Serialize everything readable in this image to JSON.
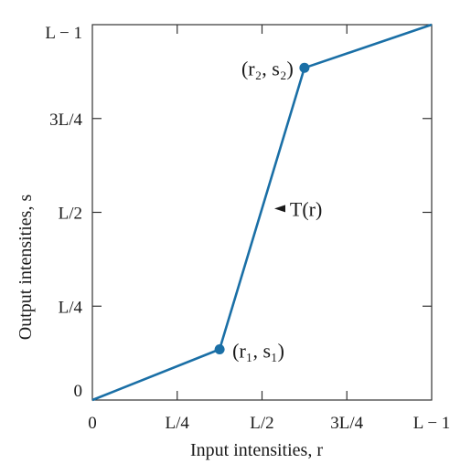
{
  "chart_data": {
    "type": "line",
    "xlabel": "Input intensities, r",
    "ylabel": "Output intensities, s",
    "xlim": [
      0,
      1
    ],
    "ylim": [
      0,
      1
    ],
    "grid": false,
    "x_ticks": [
      {
        "value": 0,
        "label": "0"
      },
      {
        "value": 0.25,
        "label": "L/4"
      },
      {
        "value": 0.5,
        "label": "L/2"
      },
      {
        "value": 0.75,
        "label": "3L/4"
      },
      {
        "value": 1,
        "label": "L − 1"
      }
    ],
    "y_ticks": [
      {
        "value": 0,
        "label": "0"
      },
      {
        "value": 0.25,
        "label": "L/4"
      },
      {
        "value": 0.5,
        "label": "L/2"
      },
      {
        "value": 0.75,
        "label": "3L/4"
      },
      {
        "value": 1,
        "label": "L − 1"
      }
    ],
    "series": [
      {
        "x": [
          0,
          0.375,
          0.625,
          1
        ],
        "y": [
          0,
          0.135,
          0.885,
          1
        ],
        "color": "#1a6fa6"
      }
    ],
    "points": [
      {
        "x": 0.375,
        "y": 0.135,
        "label": "(r₁, s₁)",
        "label_side": "right"
      },
      {
        "x": 0.625,
        "y": 0.885,
        "label": "(r₂, s₂)",
        "label_side": "left"
      }
    ],
    "annotations": [
      {
        "text": "T(r)",
        "x": 0.485,
        "y": 0.51,
        "arrow": "left"
      }
    ]
  }
}
